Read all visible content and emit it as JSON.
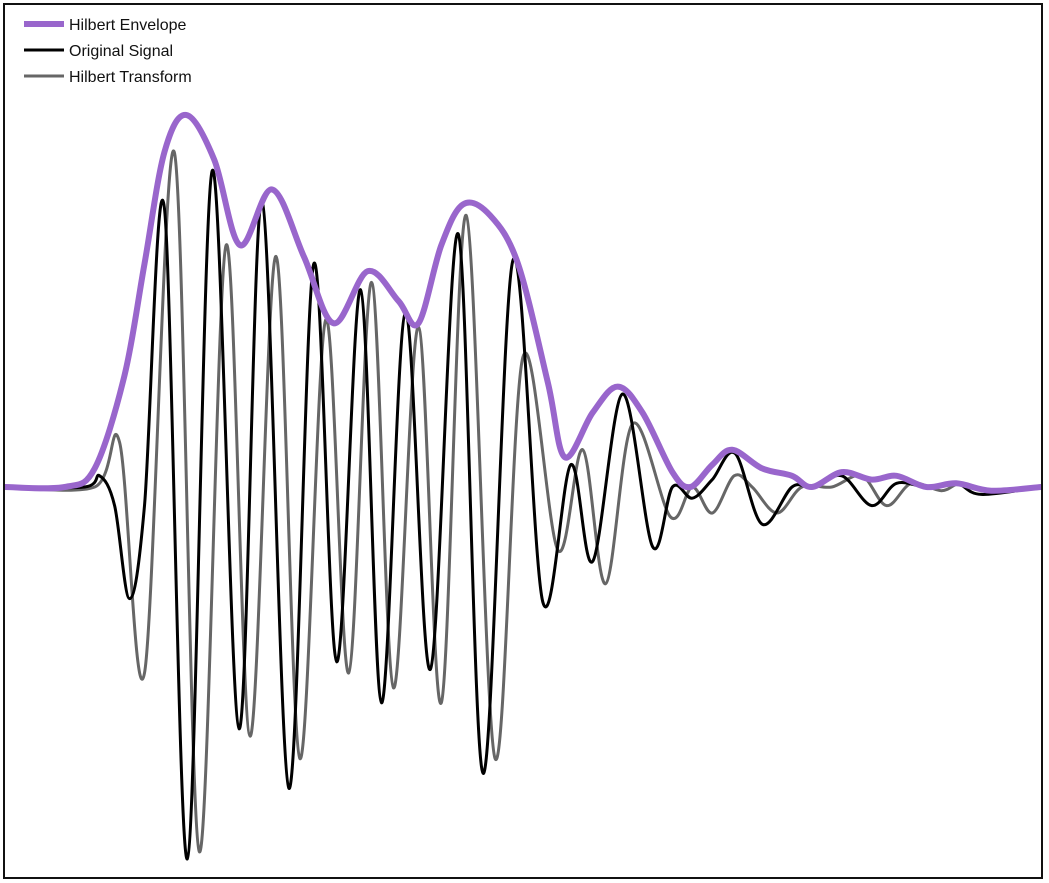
{
  "chart_data": {
    "type": "line",
    "title": "",
    "xlabel": "",
    "ylabel": "",
    "grid": false,
    "axes_visible": false,
    "legend": {
      "position": "top-left",
      "entries": [
        "Hilbert Envelope",
        "Original Signal",
        "Hilbert Transform"
      ]
    },
    "ylim": [
      -1.05,
      1.05
    ],
    "xlim": [
      0,
      1040
    ],
    "series": [
      {
        "name": "Hilbert Envelope",
        "color": "#9966CC",
        "points": [
          [
            0,
            0.0
          ],
          [
            60,
            0.0
          ],
          [
            90,
            0.05
          ],
          [
            120,
            0.3
          ],
          [
            140,
            0.6
          ],
          [
            160,
            0.9
          ],
          [
            182,
            1.0
          ],
          [
            210,
            0.88
          ],
          [
            236,
            0.65
          ],
          [
            268,
            0.8
          ],
          [
            300,
            0.62
          ],
          [
            330,
            0.44
          ],
          [
            364,
            0.58
          ],
          [
            395,
            0.5
          ],
          [
            415,
            0.44
          ],
          [
            438,
            0.65
          ],
          [
            460,
            0.76
          ],
          [
            487,
            0.73
          ],
          [
            515,
            0.6
          ],
          [
            545,
            0.28
          ],
          [
            562,
            0.08
          ],
          [
            590,
            0.2
          ],
          [
            615,
            0.27
          ],
          [
            640,
            0.2
          ],
          [
            670,
            0.04
          ],
          [
            688,
            0.0
          ],
          [
            710,
            0.06
          ],
          [
            730,
            0.1
          ],
          [
            760,
            0.05
          ],
          [
            790,
            0.03
          ],
          [
            810,
            0.0
          ],
          [
            840,
            0.04
          ],
          [
            870,
            0.02
          ],
          [
            895,
            0.03
          ],
          [
            925,
            0.0
          ],
          [
            955,
            0.01
          ],
          [
            990,
            -0.01
          ],
          [
            1040,
            0.0
          ]
        ]
      },
      {
        "name": "Original Signal",
        "color": "#000000",
        "points": [
          [
            0,
            0.0
          ],
          [
            80,
            0.0
          ],
          [
            95,
            0.03
          ],
          [
            110,
            -0.05
          ],
          [
            125,
            -0.3
          ],
          [
            140,
            -0.05
          ],
          [
            160,
            0.75
          ],
          [
            183,
            -1.0
          ],
          [
            208,
            0.85
          ],
          [
            235,
            -0.65
          ],
          [
            258,
            0.77
          ],
          [
            285,
            -0.81
          ],
          [
            310,
            0.6
          ],
          [
            333,
            -0.47
          ],
          [
            357,
            0.53
          ],
          [
            378,
            -0.58
          ],
          [
            402,
            0.47
          ],
          [
            427,
            -0.49
          ],
          [
            455,
            0.68
          ],
          [
            480,
            -0.77
          ],
          [
            510,
            0.61
          ],
          [
            540,
            -0.31
          ],
          [
            568,
            0.06
          ],
          [
            590,
            -0.2
          ],
          [
            620,
            0.25
          ],
          [
            650,
            -0.16
          ],
          [
            670,
            0.0
          ],
          [
            690,
            -0.03
          ],
          [
            710,
            0.02
          ],
          [
            733,
            0.09
          ],
          [
            760,
            -0.1
          ],
          [
            790,
            0.0
          ],
          [
            810,
            0.0
          ],
          [
            840,
            0.03
          ],
          [
            870,
            -0.05
          ],
          [
            895,
            0.01
          ],
          [
            925,
            0.0
          ],
          [
            955,
            0.01
          ],
          [
            980,
            -0.02
          ],
          [
            1040,
            0.0
          ]
        ]
      },
      {
        "name": "Hilbert Transform",
        "color": "#666666",
        "points": [
          [
            0,
            0.0
          ],
          [
            90,
            0.0
          ],
          [
            115,
            0.12
          ],
          [
            140,
            -0.5
          ],
          [
            170,
            0.9
          ],
          [
            195,
            -0.98
          ],
          [
            222,
            0.65
          ],
          [
            246,
            -0.67
          ],
          [
            272,
            0.62
          ],
          [
            296,
            -0.73
          ],
          [
            322,
            0.45
          ],
          [
            345,
            -0.5
          ],
          [
            368,
            0.55
          ],
          [
            390,
            -0.54
          ],
          [
            415,
            0.43
          ],
          [
            438,
            -0.58
          ],
          [
            463,
            0.73
          ],
          [
            492,
            -0.73
          ],
          [
            520,
            0.35
          ],
          [
            555,
            -0.17
          ],
          [
            580,
            0.1
          ],
          [
            603,
            -0.26
          ],
          [
            630,
            0.17
          ],
          [
            668,
            -0.08
          ],
          [
            690,
            0.0
          ],
          [
            710,
            -0.07
          ],
          [
            732,
            0.03
          ],
          [
            750,
            0.0
          ],
          [
            775,
            -0.07
          ],
          [
            800,
            0.0
          ],
          [
            830,
            0.0
          ],
          [
            860,
            0.03
          ],
          [
            885,
            -0.05
          ],
          [
            910,
            0.01
          ],
          [
            940,
            -0.01
          ],
          [
            960,
            0.01
          ],
          [
            990,
            -0.01
          ],
          [
            1040,
            0.0
          ]
        ]
      }
    ]
  }
}
